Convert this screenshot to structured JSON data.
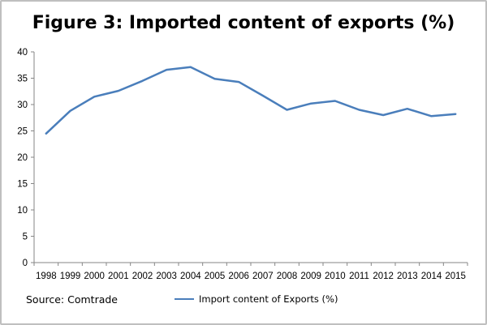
{
  "chart_data": {
    "type": "line",
    "title": "Figure 3: Imported content of exports (%)",
    "xlabel": "",
    "ylabel": "",
    "x": [
      "1998",
      "1999",
      "2000",
      "2001",
      "2002",
      "2003",
      "2004",
      "2005",
      "2006",
      "2007",
      "2008",
      "2009",
      "2010",
      "2011",
      "2012",
      "2013",
      "2014",
      "2015"
    ],
    "series": [
      {
        "name": "Import content of Exports (%)",
        "color": "#4a7ebb",
        "values": [
          24.5,
          28.8,
          31.5,
          32.6,
          34.5,
          36.6,
          37.1,
          34.9,
          34.3,
          31.7,
          29.0,
          30.2,
          30.7,
          29.0,
          28.0,
          29.2,
          27.8,
          28.2
        ]
      }
    ],
    "ylim": [
      0,
      40
    ],
    "yticks": [
      0,
      5,
      10,
      15,
      20,
      25,
      30,
      35,
      40
    ],
    "grid": false,
    "legend_position": "bottom"
  },
  "footer": {
    "source": "Source: Comtrade"
  }
}
